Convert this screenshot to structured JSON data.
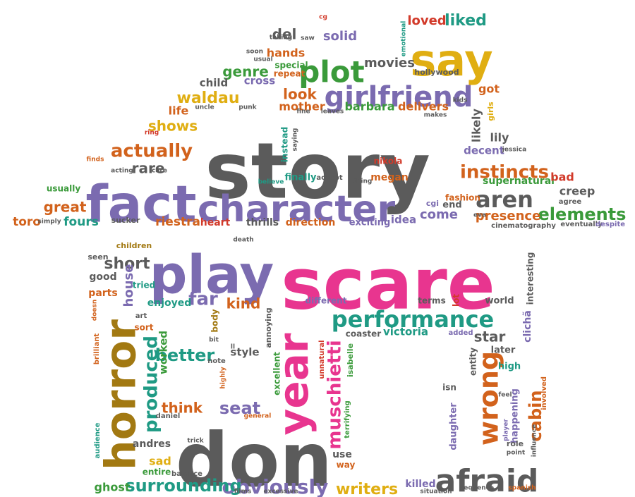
{
  "palette": {
    "gray": "#5b5b5b",
    "purple": "#7b6bb0",
    "pink": "#e8358f",
    "green": "#3a9a3a",
    "orange": "#d2621c",
    "yellow": "#e0ae12",
    "brown": "#a27912",
    "teal": "#1f9a84",
    "red": "#d23a2a"
  },
  "words": [
    {
      "text": "story",
      "color": "gray"
    },
    {
      "text": "scare",
      "color": "pink"
    },
    {
      "text": "don",
      "color": "gray"
    },
    {
      "text": "fact",
      "color": "purple"
    },
    {
      "text": "character",
      "color": "purple"
    },
    {
      "text": "play",
      "color": "purple"
    },
    {
      "text": "say",
      "color": "yellow"
    },
    {
      "text": "plot",
      "color": "green"
    },
    {
      "text": "girlfriend",
      "color": "purple"
    },
    {
      "text": "horror",
      "color": "brown"
    },
    {
      "text": "year",
      "color": "pink"
    },
    {
      "text": "performance",
      "color": "teal"
    },
    {
      "text": "afraid",
      "color": "gray"
    },
    {
      "text": "wrong",
      "color": "orange"
    },
    {
      "text": "aren",
      "color": "gray"
    },
    {
      "text": "instincts",
      "color": "orange"
    },
    {
      "text": "actually",
      "color": "orange"
    },
    {
      "text": "elements",
      "color": "green"
    },
    {
      "text": "obviously",
      "color": "purple"
    },
    {
      "text": "surrounding",
      "color": "teal"
    },
    {
      "text": "muschietti",
      "color": "pink"
    },
    {
      "text": "produced",
      "color": "teal"
    },
    {
      "text": "cabin",
      "color": "orange"
    },
    {
      "text": "seat",
      "color": "purple"
    },
    {
      "text": "better",
      "color": "teal"
    },
    {
      "text": "far",
      "color": "purple"
    },
    {
      "text": "kind",
      "color": "orange"
    },
    {
      "text": "short",
      "color": "gray"
    },
    {
      "text": "house",
      "color": "purple"
    },
    {
      "text": "writers",
      "color": "yellow"
    },
    {
      "text": "great",
      "color": "orange"
    },
    {
      "text": "rare",
      "color": "gray"
    },
    {
      "text": "shows",
      "color": "yellow"
    },
    {
      "text": "look",
      "color": "orange"
    },
    {
      "text": "come",
      "color": "purple"
    },
    {
      "text": "presence",
      "color": "orange"
    },
    {
      "text": "waldau",
      "color": "yellow"
    },
    {
      "text": "genre",
      "color": "green"
    },
    {
      "text": "solid",
      "color": "purple"
    },
    {
      "text": "liked",
      "color": "teal"
    },
    {
      "text": "loved",
      "color": "red"
    },
    {
      "text": "del",
      "color": "gray"
    },
    {
      "text": "movies",
      "color": "gray"
    },
    {
      "text": "hands",
      "color": "orange"
    },
    {
      "text": "mother",
      "color": "orange"
    },
    {
      "text": "barbara",
      "color": "green"
    },
    {
      "text": "delivers",
      "color": "orange"
    },
    {
      "text": "life",
      "color": "orange"
    },
    {
      "text": "got",
      "color": "orange"
    },
    {
      "text": "likely",
      "color": "gray"
    },
    {
      "text": "lily",
      "color": "gray"
    },
    {
      "text": "decent",
      "color": "purple"
    },
    {
      "text": "supernatural",
      "color": "green"
    },
    {
      "text": "bad",
      "color": "red"
    },
    {
      "text": "creep",
      "color": "gray"
    },
    {
      "text": "agree",
      "color": "gray"
    },
    {
      "text": "riestra",
      "color": "orange"
    },
    {
      "text": "fours",
      "color": "teal"
    },
    {
      "text": "toro",
      "color": "orange"
    },
    {
      "text": "usually",
      "color": "green"
    },
    {
      "text": "heart",
      "color": "red"
    },
    {
      "text": "thrills",
      "color": "gray"
    },
    {
      "text": "direction",
      "color": "orange"
    },
    {
      "text": "exciting",
      "color": "purple"
    },
    {
      "text": "idea",
      "color": "purple"
    },
    {
      "text": "nikola",
      "color": "red"
    },
    {
      "text": "megan",
      "color": "orange"
    },
    {
      "text": "finally",
      "color": "teal"
    },
    {
      "text": "accept",
      "color": "gray"
    },
    {
      "text": "end",
      "color": "gray"
    },
    {
      "text": "cgi",
      "color": "purple"
    },
    {
      "text": "fashion",
      "color": "orange"
    },
    {
      "text": "cinematography",
      "color": "gray"
    },
    {
      "text": "eventually",
      "color": "gray"
    },
    {
      "text": "despite",
      "color": "purple"
    },
    {
      "text": "child",
      "color": "gray"
    },
    {
      "text": "cross",
      "color": "purple"
    },
    {
      "text": "special",
      "color": "green"
    },
    {
      "text": "repeat",
      "color": "orange"
    },
    {
      "text": "hollywood",
      "color": "gray"
    },
    {
      "text": "kids",
      "color": "gray"
    },
    {
      "text": "girls",
      "color": "yellow"
    },
    {
      "text": "makes",
      "color": "gray"
    },
    {
      "text": "leaves",
      "color": "gray"
    },
    {
      "text": "punk",
      "color": "gray"
    },
    {
      "text": "uncle",
      "color": "gray"
    },
    {
      "text": "fine",
      "color": "gray"
    },
    {
      "text": "instead",
      "color": "teal"
    },
    {
      "text": "saying",
      "color": "gray"
    },
    {
      "text": "ring",
      "color": "red"
    },
    {
      "text": "finds",
      "color": "orange"
    },
    {
      "text": "acting",
      "color": "gray"
    },
    {
      "text": "care",
      "color": "gray"
    },
    {
      "text": "believe",
      "color": "teal"
    },
    {
      "text": "thing",
      "color": "gray"
    },
    {
      "text": "jessica",
      "color": "gray"
    },
    {
      "text": "simply",
      "color": "gray"
    },
    {
      "text": "sucker",
      "color": "gray"
    },
    {
      "text": "eva",
      "color": "gray"
    },
    {
      "text": "taking",
      "color": "gray"
    },
    {
      "text": "saw",
      "color": "gray"
    },
    {
      "text": "soon",
      "color": "gray"
    },
    {
      "text": "usual",
      "color": "gray"
    },
    {
      "text": "emotional",
      "color": "teal"
    },
    {
      "text": "cg",
      "color": "red"
    },
    {
      "text": "children",
      "color": "brown"
    },
    {
      "text": "death",
      "color": "gray"
    },
    {
      "text": "seen",
      "color": "gray"
    },
    {
      "text": "good",
      "color": "gray"
    },
    {
      "text": "parts",
      "color": "orange"
    },
    {
      "text": "tried",
      "color": "teal"
    },
    {
      "text": "enjoyed",
      "color": "teal"
    },
    {
      "text": "art",
      "color": "gray"
    },
    {
      "text": "sort",
      "color": "orange"
    },
    {
      "text": "brilliant",
      "color": "orange"
    },
    {
      "text": "doesn",
      "color": "orange"
    },
    {
      "text": "worked",
      "color": "green"
    },
    {
      "text": "body",
      "color": "brown"
    },
    {
      "text": "bit",
      "color": "gray"
    },
    {
      "text": "ll",
      "color": "gray"
    },
    {
      "text": "note",
      "color": "gray"
    },
    {
      "text": "highly",
      "color": "orange"
    },
    {
      "text": "think",
      "color": "orange"
    },
    {
      "text": "daniel",
      "color": "gray"
    },
    {
      "text": "audience",
      "color": "teal"
    },
    {
      "text": "andres",
      "color": "gray"
    },
    {
      "text": "trick",
      "color": "gray"
    },
    {
      "text": "sad",
      "color": "yellow"
    },
    {
      "text": "entire",
      "color": "green"
    },
    {
      "text": "balance",
      "color": "gray"
    },
    {
      "text": "ghost",
      "color": "green"
    },
    {
      "text": "films",
      "color": "gray"
    },
    {
      "text": "excessive",
      "color": "gray"
    },
    {
      "text": "style",
      "color": "gray"
    },
    {
      "text": "annoying",
      "color": "gray"
    },
    {
      "text": "excellent",
      "color": "green"
    },
    {
      "text": "general",
      "color": "orange"
    },
    {
      "text": "different",
      "color": "purple"
    },
    {
      "text": "coaster",
      "color": "gray"
    },
    {
      "text": "victoria",
      "color": "teal"
    },
    {
      "text": "unnatural",
      "color": "red"
    },
    {
      "text": "isabelle",
      "color": "green"
    },
    {
      "text": "terrifying",
      "color": "green"
    },
    {
      "text": "use",
      "color": "gray"
    },
    {
      "text": "way",
      "color": "orange"
    },
    {
      "text": "terms",
      "color": "gray"
    },
    {
      "text": "lot",
      "color": "red"
    },
    {
      "text": "world",
      "color": "gray"
    },
    {
      "text": "interesting",
      "color": "gray"
    },
    {
      "text": "star",
      "color": "gray"
    },
    {
      "text": "later",
      "color": "gray"
    },
    {
      "text": "high",
      "color": "teal"
    },
    {
      "text": "added",
      "color": "purple"
    },
    {
      "text": "entity",
      "color": "gray"
    },
    {
      "text": "clichã",
      "color": "purple"
    },
    {
      "text": "isn",
      "color": "gray"
    },
    {
      "text": "daughter",
      "color": "purple"
    },
    {
      "text": "happening",
      "color": "purple"
    },
    {
      "text": "feel",
      "color": "gray"
    },
    {
      "text": "player",
      "color": "purple"
    },
    {
      "text": "involved",
      "color": "orange"
    },
    {
      "text": "influence",
      "color": "gray"
    },
    {
      "text": "role",
      "color": "gray"
    },
    {
      "text": "point",
      "color": "gray"
    },
    {
      "text": "killed",
      "color": "purple"
    },
    {
      "text": "situation",
      "color": "gray"
    },
    {
      "text": "sequence",
      "color": "gray"
    },
    {
      "text": "spanish",
      "color": "orange"
    }
  ]
}
